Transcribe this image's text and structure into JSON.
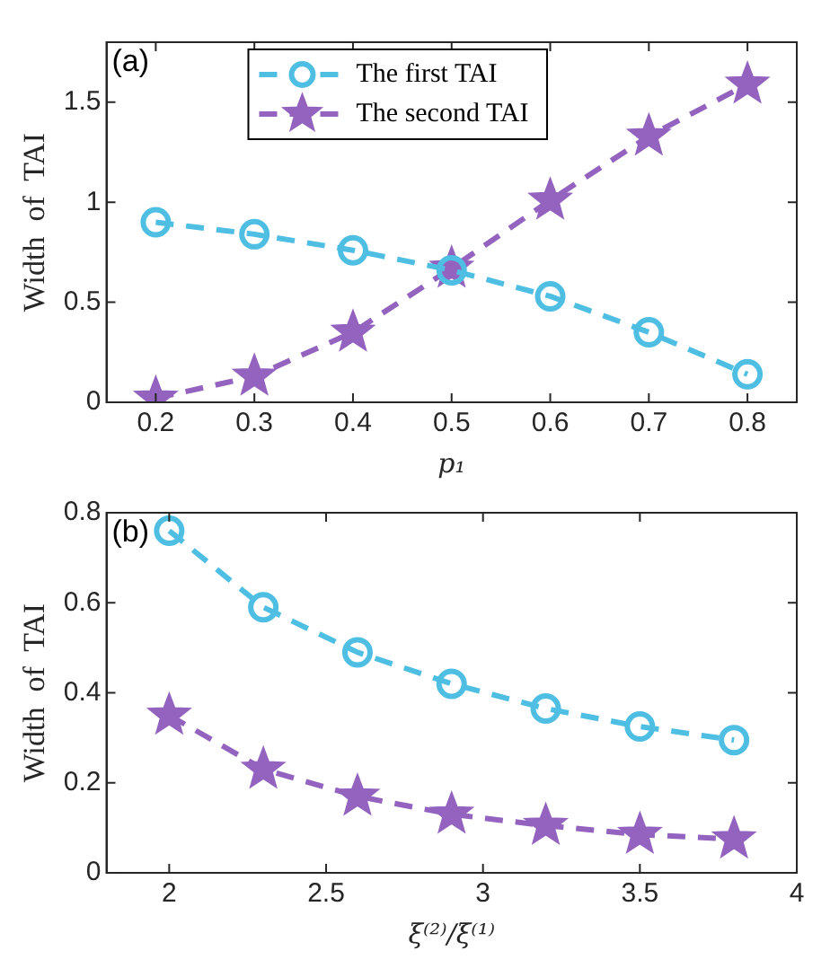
{
  "chart_data": [
    {
      "type": "line",
      "annotations": [
        "(a)"
      ],
      "xlabel": "p₁",
      "ylabel": "Width  of  TAI",
      "x": [
        0.2,
        0.3,
        0.4,
        0.5,
        0.6,
        0.7,
        0.8
      ],
      "xlim": [
        0.15,
        0.85
      ],
      "xticks": [
        0.2,
        0.3,
        0.4,
        0.5,
        0.6,
        0.7,
        0.8
      ],
      "ylim": [
        0,
        1.8
      ],
      "yticks": [
        0,
        0.5,
        1,
        1.5
      ],
      "legend": "top",
      "line_style": "dashed",
      "series": [
        {
          "name": "The first TAI",
          "color": "#4fbee3",
          "marker": "circle",
          "values": [
            0.9,
            0.84,
            0.76,
            0.66,
            0.53,
            0.35,
            0.14
          ]
        },
        {
          "name": "The second TAI",
          "color": "#9363bf",
          "marker": "star",
          "values": [
            0.02,
            0.13,
            0.35,
            0.67,
            1.01,
            1.33,
            1.59
          ]
        }
      ]
    },
    {
      "type": "line",
      "annotations": [
        "(b)"
      ],
      "xlabel": "ξ⁽²⁾/ξ⁽¹⁾",
      "ylabel": "Width  of  TAI",
      "x": [
        2,
        2.3,
        2.6,
        2.9,
        3.2,
        3.5,
        3.8
      ],
      "xlim": [
        1.8,
        4
      ],
      "xticks": [
        2,
        2.5,
        3,
        3.5,
        4
      ],
      "ylim": [
        0,
        0.8
      ],
      "yticks": [
        0,
        0.2,
        0.4,
        0.6,
        0.8
      ],
      "line_style": "dashed",
      "series": [
        {
          "color": "#4fbee3",
          "marker": "circle",
          "values": [
            0.76,
            0.59,
            0.49,
            0.42,
            0.365,
            0.325,
            0.295
          ]
        },
        {
          "color": "#9363bf",
          "marker": "star",
          "values": [
            0.35,
            0.23,
            0.17,
            0.13,
            0.105,
            0.085,
            0.075
          ]
        }
      ]
    }
  ]
}
